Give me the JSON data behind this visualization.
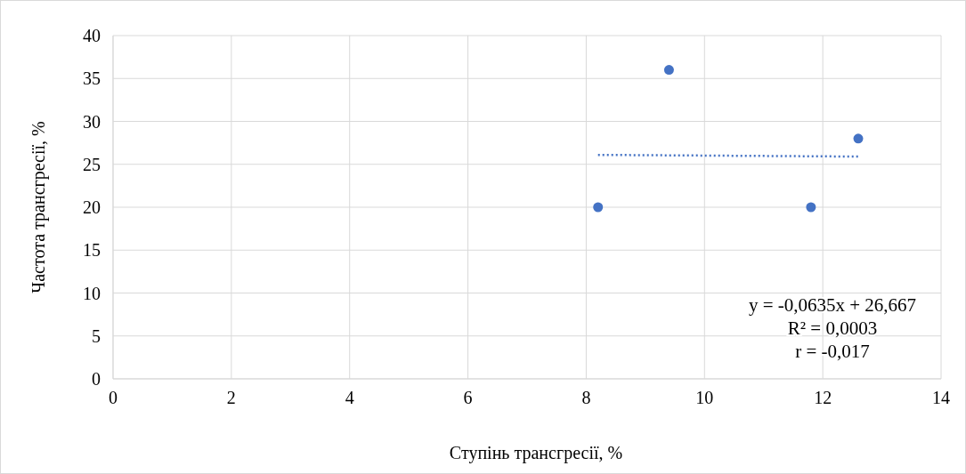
{
  "chart_data": {
    "type": "scatter",
    "xlabel": "Ступінь трансгресії, %",
    "ylabel": "Частота трансгресії, %",
    "xlim": [
      0,
      14
    ],
    "xticks": [
      0,
      2,
      4,
      6,
      8,
      10,
      12,
      14
    ],
    "ylim": [
      0,
      40
    ],
    "yticks": [
      0,
      5,
      10,
      15,
      20,
      25,
      30,
      35,
      40
    ],
    "grid": true,
    "marker": "circle",
    "series": [
      {
        "color": "#4472c4",
        "x": [
          8.2,
          9.4,
          11.8,
          12.6
        ],
        "values": [
          20,
          36,
          20,
          28
        ]
      },
      {
        "type": "line",
        "color": "#4472c4",
        "line_style": "dotted",
        "marker": "none",
        "x": [
          8.2,
          12.6
        ],
        "values": [
          26.1,
          25.9
        ]
      }
    ],
    "annotations": [
      "y = -0,0635x + 26,667",
      "R² = 0,0003",
      "r = -0,017"
    ]
  }
}
